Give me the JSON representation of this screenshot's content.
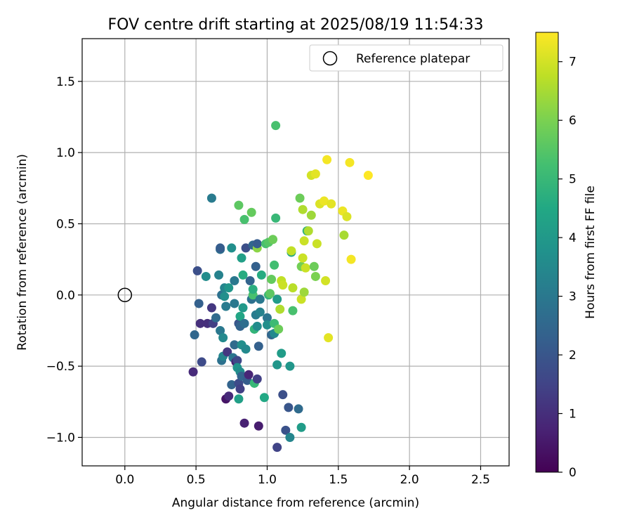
{
  "chart_data": {
    "type": "scatter",
    "title": "FOV centre drift starting at 2025/08/19 11:54:33",
    "xlabel": "Angular distance from reference (arcmin)",
    "ylabel": "Rotation from reference (arcmin)",
    "xlim": [
      -0.3,
      2.7
    ],
    "ylim": [
      -1.2,
      1.8
    ],
    "xticks": [
      0.0,
      0.5,
      1.0,
      1.5,
      2.0,
      2.5
    ],
    "xtick_labels": [
      "0.0",
      "0.5",
      "1.0",
      "1.5",
      "2.0",
      "2.5"
    ],
    "yticks": [
      -1.0,
      -0.5,
      0.0,
      0.5,
      1.0,
      1.5
    ],
    "ytick_labels": [
      "−1.0",
      "−0.5",
      "0.0",
      "0.5",
      "1.0",
      "1.5"
    ],
    "grid": true,
    "legend": {
      "label": "Reference platepar",
      "position": "top-right"
    },
    "reference_point": {
      "x": 0.0,
      "y": 0.0
    },
    "colorbar": {
      "label": "Hours from first FF file",
      "range": [
        0,
        7.5
      ],
      "ticks": [
        0,
        1,
        2,
        3,
        4,
        5,
        6,
        7
      ],
      "tick_labels": [
        "0",
        "1",
        "2",
        "3",
        "4",
        "5",
        "6",
        "7"
      ],
      "colormap": "viridis"
    },
    "points": [
      {
        "x": 0.48,
        "y": -0.54,
        "t": 0.9
      },
      {
        "x": 0.53,
        "y": -0.2,
        "t": 1.0
      },
      {
        "x": 0.54,
        "y": -0.47,
        "t": 1.7
      },
      {
        "x": 0.51,
        "y": 0.17,
        "t": 1.8
      },
      {
        "x": 0.52,
        "y": -0.06,
        "t": 2.3
      },
      {
        "x": 0.49,
        "y": -0.28,
        "t": 2.5
      },
      {
        "x": 0.57,
        "y": 0.13,
        "t": 3.6
      },
      {
        "x": 0.61,
        "y": 0.68,
        "t": 3.1
      },
      {
        "x": 0.58,
        "y": -0.2,
        "t": 1.0
      },
      {
        "x": 0.61,
        "y": -0.09,
        "t": 1.2
      },
      {
        "x": 0.62,
        "y": -0.2,
        "t": 1.4
      },
      {
        "x": 0.64,
        "y": -0.16,
        "t": 2.6
      },
      {
        "x": 0.66,
        "y": 0.14,
        "t": 3.3
      },
      {
        "x": 0.67,
        "y": 0.32,
        "t": 2.7
      },
      {
        "x": 0.67,
        "y": 0.33,
        "t": 2.2
      },
      {
        "x": 0.68,
        "y": 0.0,
        "t": 2.8
      },
      {
        "x": 0.67,
        "y": -0.25,
        "t": 3.0
      },
      {
        "x": 0.68,
        "y": -0.46,
        "t": 2.8
      },
      {
        "x": 0.69,
        "y": -0.3,
        "t": 3.5
      },
      {
        "x": 0.69,
        "y": -0.43,
        "t": 3.4
      },
      {
        "x": 0.7,
        "y": 0.05,
        "t": 3.4
      },
      {
        "x": 0.7,
        "y": -0.01,
        "t": 3.7
      },
      {
        "x": 0.71,
        "y": -0.08,
        "t": 3.1
      },
      {
        "x": 0.71,
        "y": -0.73,
        "t": 0.4
      },
      {
        "x": 0.72,
        "y": -0.4,
        "t": 1.2
      },
      {
        "x": 0.73,
        "y": -0.71,
        "t": 0.9
      },
      {
        "x": 0.73,
        "y": 0.05,
        "t": 3.9
      },
      {
        "x": 0.75,
        "y": 0.33,
        "t": 3.7
      },
      {
        "x": 0.75,
        "y": -0.63,
        "t": 2.4
      },
      {
        "x": 0.76,
        "y": -0.44,
        "t": 2.9
      },
      {
        "x": 0.77,
        "y": -0.06,
        "t": 3.0
      },
      {
        "x": 0.77,
        "y": -0.35,
        "t": 2.6
      },
      {
        "x": 0.77,
        "y": 0.1,
        "t": 3.0
      },
      {
        "x": 0.78,
        "y": -0.47,
        "t": 0.7
      },
      {
        "x": 0.79,
        "y": -0.46,
        "t": 1.6
      },
      {
        "x": 0.79,
        "y": -0.51,
        "t": 3.8
      },
      {
        "x": 0.8,
        "y": 0.63,
        "t": 5.6
      },
      {
        "x": 0.8,
        "y": -0.73,
        "t": 4.2
      },
      {
        "x": 0.8,
        "y": -0.2,
        "t": 2.0
      },
      {
        "x": 0.8,
        "y": -0.62,
        "t": 1.7
      },
      {
        "x": 0.81,
        "y": -0.15,
        "t": 4.4
      },
      {
        "x": 0.81,
        "y": -0.54,
        "t": 3.6
      },
      {
        "x": 0.81,
        "y": -0.66,
        "t": 1.4
      },
      {
        "x": 0.81,
        "y": -0.22,
        "t": 2.4
      },
      {
        "x": 0.82,
        "y": 0.26,
        "t": 4.2
      },
      {
        "x": 0.82,
        "y": -0.35,
        "t": 3.7
      },
      {
        "x": 0.82,
        "y": -0.57,
        "t": 2.4
      },
      {
        "x": 0.83,
        "y": 0.14,
        "t": 4.6
      },
      {
        "x": 0.83,
        "y": -0.09,
        "t": 4.0
      },
      {
        "x": 0.84,
        "y": 0.53,
        "t": 5.3
      },
      {
        "x": 0.84,
        "y": -0.2,
        "t": 2.7
      },
      {
        "x": 0.84,
        "y": -0.9,
        "t": 0.7
      },
      {
        "x": 0.85,
        "y": 0.33,
        "t": 1.8
      },
      {
        "x": 0.85,
        "y": -0.38,
        "t": 3.5
      },
      {
        "x": 0.86,
        "y": -0.6,
        "t": 2.2
      },
      {
        "x": 0.87,
        "y": -0.56,
        "t": 0.8
      },
      {
        "x": 0.88,
        "y": 0.1,
        "t": 2.4
      },
      {
        "x": 0.89,
        "y": 0.58,
        "t": 5.7
      },
      {
        "x": 0.89,
        "y": -0.03,
        "t": 2.8
      },
      {
        "x": 0.9,
        "y": 0.0,
        "t": 5.3
      },
      {
        "x": 0.9,
        "y": 0.04,
        "t": 4.7
      },
      {
        "x": 0.9,
        "y": 0.35,
        "t": 2.5
      },
      {
        "x": 0.91,
        "y": -0.62,
        "t": 5.0
      },
      {
        "x": 0.91,
        "y": -0.24,
        "t": 4.9
      },
      {
        "x": 0.92,
        "y": 0.2,
        "t": 2.3
      },
      {
        "x": 0.92,
        "y": -0.14,
        "t": 3.1
      },
      {
        "x": 0.93,
        "y": -0.22,
        "t": 3.6
      },
      {
        "x": 0.93,
        "y": 0.33,
        "t": 6.2
      },
      {
        "x": 0.93,
        "y": 0.36,
        "t": 2.2
      },
      {
        "x": 0.93,
        "y": -0.59,
        "t": 1.4
      },
      {
        "x": 0.94,
        "y": -0.92,
        "t": 0.6
      },
      {
        "x": 0.94,
        "y": -0.36,
        "t": 2.3
      },
      {
        "x": 0.95,
        "y": -0.12,
        "t": 3.3
      },
      {
        "x": 0.95,
        "y": -0.03,
        "t": 3.0
      },
      {
        "x": 0.96,
        "y": 0.14,
        "t": 4.6
      },
      {
        "x": 0.98,
        "y": -0.72,
        "t": 4.5
      },
      {
        "x": 0.99,
        "y": 0.36,
        "t": 5.3
      },
      {
        "x": 1.0,
        "y": -0.16,
        "t": 2.9
      },
      {
        "x": 1.0,
        "y": -0.21,
        "t": 3.7
      },
      {
        "x": 1.01,
        "y": 0.0,
        "t": 4.9
      },
      {
        "x": 1.01,
        "y": 0.37,
        "t": 5.5
      },
      {
        "x": 1.02,
        "y": 0.01,
        "t": 5.6
      },
      {
        "x": 1.03,
        "y": -0.28,
        "t": 2.5
      },
      {
        "x": 1.03,
        "y": 0.11,
        "t": 5.7
      },
      {
        "x": 1.04,
        "y": 0.39,
        "t": 5.8
      },
      {
        "x": 1.05,
        "y": -0.27,
        "t": 3.5
      },
      {
        "x": 1.05,
        "y": 0.21,
        "t": 5.2
      },
      {
        "x": 1.05,
        "y": -0.2,
        "t": 5.1
      },
      {
        "x": 1.06,
        "y": 1.19,
        "t": 5.3
      },
      {
        "x": 1.06,
        "y": 0.54,
        "t": 5.0
      },
      {
        "x": 1.07,
        "y": -0.49,
        "t": 3.9
      },
      {
        "x": 1.07,
        "y": -0.03,
        "t": 4.1
      },
      {
        "x": 1.07,
        "y": -1.07,
        "t": 1.5
      },
      {
        "x": 1.08,
        "y": -0.24,
        "t": 5.8
      },
      {
        "x": 1.09,
        "y": -0.1,
        "t": 6.6
      },
      {
        "x": 1.1,
        "y": -0.41,
        "t": 4.1
      },
      {
        "x": 1.1,
        "y": 0.1,
        "t": 6.8
      },
      {
        "x": 1.11,
        "y": -0.7,
        "t": 1.8
      },
      {
        "x": 1.11,
        "y": 0.07,
        "t": 6.9
      },
      {
        "x": 1.13,
        "y": -0.95,
        "t": 1.9
      },
      {
        "x": 1.15,
        "y": -0.79,
        "t": 2.0
      },
      {
        "x": 1.16,
        "y": -0.5,
        "t": 3.9
      },
      {
        "x": 1.16,
        "y": -1.0,
        "t": 3.4
      },
      {
        "x": 1.17,
        "y": 0.3,
        "t": 4.4
      },
      {
        "x": 1.17,
        "y": 0.31,
        "t": 6.8
      },
      {
        "x": 1.18,
        "y": 0.05,
        "t": 6.7
      },
      {
        "x": 1.18,
        "y": -0.11,
        "t": 5.3
      },
      {
        "x": 1.22,
        "y": -0.8,
        "t": 2.6
      },
      {
        "x": 1.23,
        "y": 0.68,
        "t": 5.8
      },
      {
        "x": 1.24,
        "y": 0.2,
        "t": 5.9
      },
      {
        "x": 1.24,
        "y": -0.03,
        "t": 6.9
      },
      {
        "x": 1.24,
        "y": -0.93,
        "t": 4.1
      },
      {
        "x": 1.25,
        "y": 0.6,
        "t": 6.6
      },
      {
        "x": 1.25,
        "y": 0.26,
        "t": 6.9
      },
      {
        "x": 1.26,
        "y": 0.38,
        "t": 6.9
      },
      {
        "x": 1.26,
        "y": 0.02,
        "t": 6.4
      },
      {
        "x": 1.27,
        "y": 0.19,
        "t": 6.9
      },
      {
        "x": 1.28,
        "y": 0.45,
        "t": 4.8
      },
      {
        "x": 1.29,
        "y": 0.45,
        "t": 6.6
      },
      {
        "x": 1.31,
        "y": 0.84,
        "t": 7.0
      },
      {
        "x": 1.31,
        "y": 0.56,
        "t": 6.4
      },
      {
        "x": 1.33,
        "y": 0.2,
        "t": 5.8
      },
      {
        "x": 1.34,
        "y": 0.85,
        "t": 7.2
      },
      {
        "x": 1.34,
        "y": 0.13,
        "t": 6.0
      },
      {
        "x": 1.35,
        "y": 0.36,
        "t": 6.9
      },
      {
        "x": 1.37,
        "y": 0.64,
        "t": 7.1
      },
      {
        "x": 1.4,
        "y": 0.66,
        "t": 7.3
      },
      {
        "x": 1.41,
        "y": 0.1,
        "t": 7.0
      },
      {
        "x": 1.42,
        "y": 0.95,
        "t": 7.4
      },
      {
        "x": 1.43,
        "y": -0.3,
        "t": 7.2
      },
      {
        "x": 1.45,
        "y": 0.64,
        "t": 7.2
      },
      {
        "x": 1.53,
        "y": 0.59,
        "t": 7.3
      },
      {
        "x": 1.54,
        "y": 0.42,
        "t": 6.5
      },
      {
        "x": 1.56,
        "y": 0.55,
        "t": 7.1
      },
      {
        "x": 1.58,
        "y": 0.93,
        "t": 7.4
      },
      {
        "x": 1.59,
        "y": 0.25,
        "t": 7.4
      },
      {
        "x": 1.71,
        "y": 0.84,
        "t": 7.5
      }
    ]
  }
}
